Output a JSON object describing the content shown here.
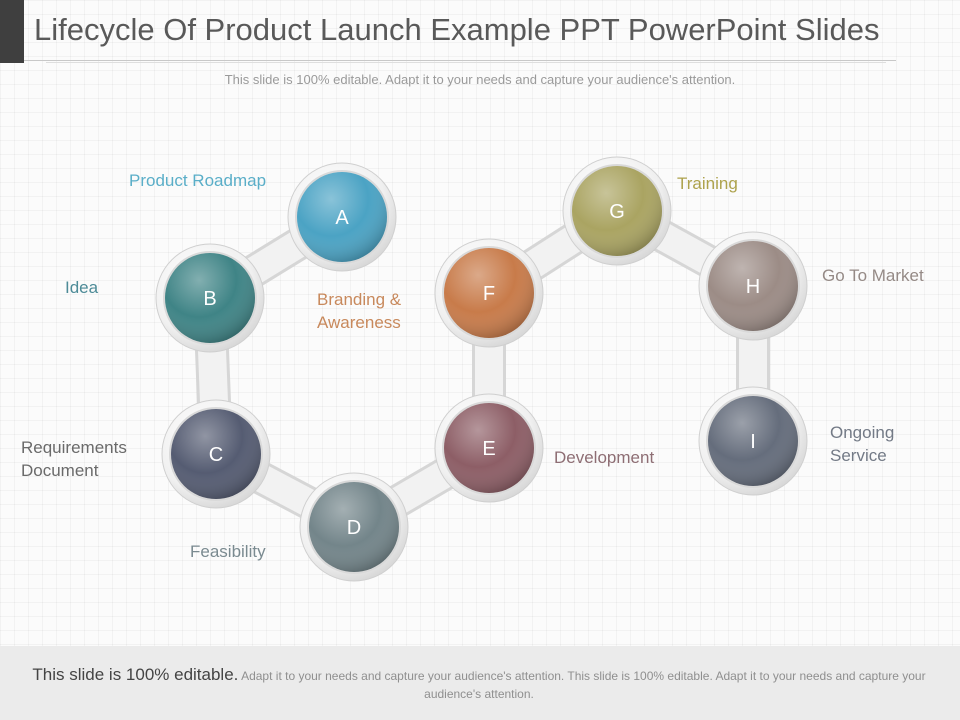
{
  "slide": {
    "title": "Lifecycle Of Product Launch Example PPT PowerPoint Slides",
    "subtitle": "This slide is 100% editable. Adapt it to your needs and capture your audience's attention."
  },
  "nodes": [
    {
      "letter": "A",
      "label": "Product Roadmap",
      "color": "#4ba3c4",
      "label_color": "#5aaec8"
    },
    {
      "letter": "B",
      "label": "Idea",
      "color": "#3f8486",
      "label_color": "#4d8b97"
    },
    {
      "letter": "C",
      "label": "Requirements Document",
      "label_lines": [
        "Requirements",
        "Document"
      ],
      "color": "#555c72",
      "label_color": "#6a6a6a"
    },
    {
      "letter": "D",
      "label": "Feasibility",
      "color": "#73858a",
      "label_color": "#7a8a90"
    },
    {
      "letter": "E",
      "label": "Development",
      "color": "#8d5e66",
      "label_color": "#8e6e74"
    },
    {
      "letter": "F",
      "label": "Branding & Awareness",
      "label_lines": [
        "Branding &",
        "Awareness"
      ],
      "color": "#c87b4a",
      "label_color": "#c8895c"
    },
    {
      "letter": "G",
      "label": "Training",
      "color": "#aaa462",
      "label_color": "#ada24c"
    },
    {
      "letter": "H",
      "label": "Go To Market",
      "color": "#9c8c86",
      "label_color": "#958a86"
    },
    {
      "letter": "I",
      "label": "Ongoing Service",
      "label_lines": [
        "Ongoing",
        "Service"
      ],
      "color": "#656d7c",
      "label_color": "#737a86"
    }
  ],
  "footer": {
    "lead": "This slide is 100% editable.",
    "text": " Adapt it to your needs and capture your audience's attention. This slide is 100% editable. Adapt it to your needs and capture your audience's attention."
  }
}
